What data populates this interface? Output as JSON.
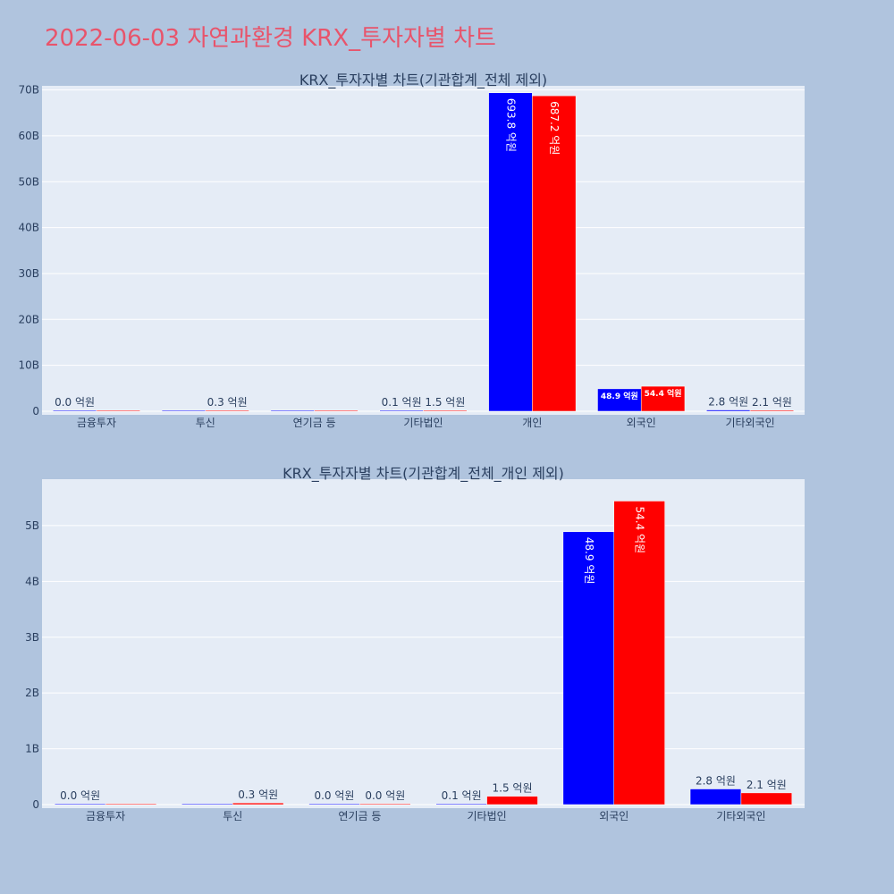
{
  "page": {
    "title": "2022-06-03 자연과환경 KRX_투자자별 차트"
  },
  "colors": {
    "series1": "#0000ff",
    "series2": "#ff0000"
  },
  "chart_data": [
    {
      "type": "bar",
      "title": "KRX_투자자별 차트(기관합계_전체 제외)",
      "categories": [
        "금융투자",
        "투신",
        "연기금 등",
        "기타법인",
        "개인",
        "외국인",
        "기타외국인"
      ],
      "series": [
        {
          "values": [
            0.0,
            0.0,
            0.0,
            0.01,
            69.38,
            4.89,
            0.28
          ],
          "labels": [
            "0.0 억원",
            "",
            "",
            "0.1 억원",
            "693.8 억원",
            "48.9 억원",
            "2.8 억원"
          ]
        },
        {
          "values": [
            0.0,
            0.03,
            0.0,
            0.15,
            68.72,
            5.44,
            0.21
          ],
          "labels": [
            "",
            "0.3 억원",
            "",
            "1.5 억원",
            "687.2 억원",
            "54.4 억원",
            "2.1 억원"
          ]
        }
      ],
      "ylim": [
        0,
        70.5
      ],
      "yticks": [
        0,
        10,
        20,
        30,
        40,
        50,
        60,
        70
      ],
      "ytick_labels": [
        "0",
        "10B",
        "20B",
        "30B",
        "40B",
        "50B",
        "60B",
        "70B"
      ],
      "barmode": "group",
      "grid": true,
      "legend": "none"
    },
    {
      "type": "bar",
      "title": "KRX_투자자별 차트(기관합계_전체_개인 제외)",
      "categories": [
        "금융투자",
        "투신",
        "연기금 등",
        "기타법인",
        "외국인",
        "기타외국인"
      ],
      "series": [
        {
          "values": [
            0.0,
            0.0,
            0.0,
            0.01,
            4.89,
            0.28
          ],
          "labels": [
            "0.0 억원",
            "",
            "0.0 억원",
            "0.1 억원",
            "48.9 억원",
            "2.8 억원"
          ]
        },
        {
          "values": [
            0.0,
            0.03,
            0.0,
            0.15,
            5.44,
            0.21
          ],
          "labels": [
            "",
            "0.3 억원",
            "0.0 억원",
            "1.5 억원",
            "54.4 억원",
            "2.1 억원"
          ]
        }
      ],
      "ylim": [
        0,
        5.8
      ],
      "yticks": [
        0,
        1,
        2,
        3,
        4,
        5
      ],
      "ytick_labels": [
        "0",
        "1B",
        "2B",
        "3B",
        "4B",
        "5B"
      ],
      "barmode": "group",
      "grid": true,
      "legend": "none"
    }
  ]
}
